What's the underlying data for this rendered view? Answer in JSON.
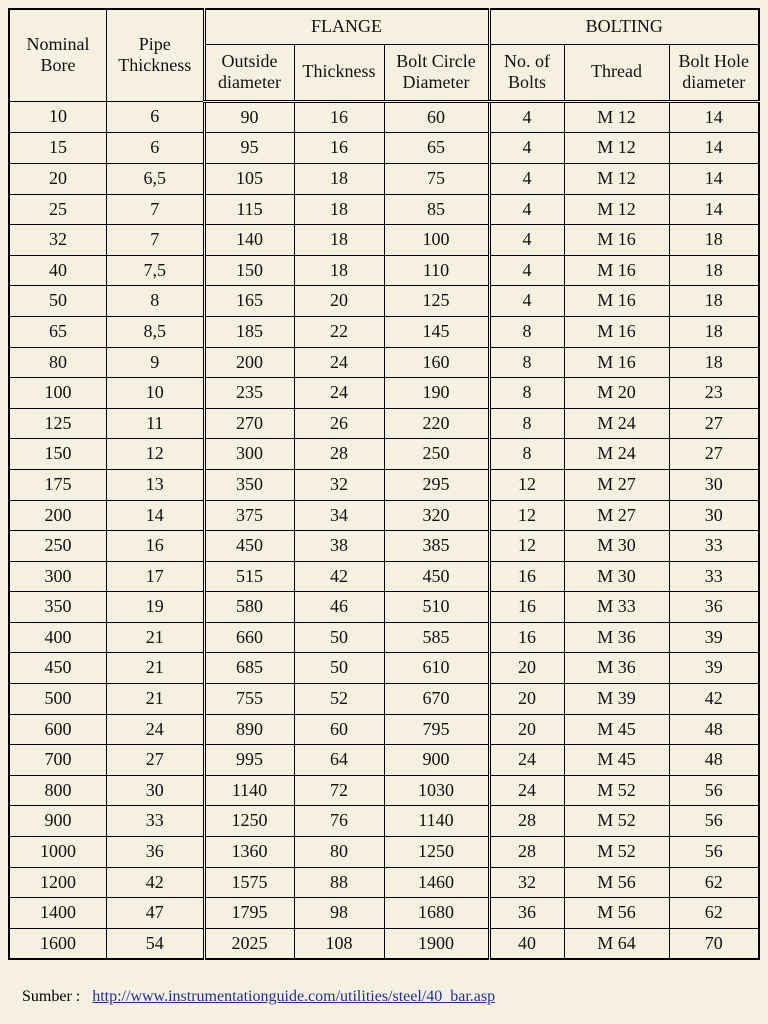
{
  "colors": {
    "background": "#f5f0e0",
    "border": "#000000",
    "text": "#111111",
    "link": "#2030a0"
  },
  "table": {
    "header_groups": [
      "Nominal\nBore",
      "Pipe\nThickness",
      "FLANGE",
      "BOLTING"
    ],
    "flange_sub": [
      "Outside\ndiameter",
      "Thickness",
      "Bolt Circle\nDiameter"
    ],
    "bolting_sub": [
      "No. of\nBolts",
      "Thread",
      "Bolt Hole\ndiameter"
    ],
    "col_widths_pct": [
      13,
      13,
      12,
      12,
      14,
      10,
      14,
      12
    ],
    "rows": [
      [
        "10",
        "6",
        "90",
        "16",
        "60",
        "4",
        "M 12",
        "14"
      ],
      [
        "15",
        "6",
        "95",
        "16",
        "65",
        "4",
        "M 12",
        "14"
      ],
      [
        "20",
        "6,5",
        "105",
        "18",
        "75",
        "4",
        "M 12",
        "14"
      ],
      [
        "25",
        "7",
        "115",
        "18",
        "85",
        "4",
        "M 12",
        "14"
      ],
      [
        "32",
        "7",
        "140",
        "18",
        "100",
        "4",
        "M 16",
        "18"
      ],
      [
        "40",
        "7,5",
        "150",
        "18",
        "110",
        "4",
        "M 16",
        "18"
      ],
      [
        "50",
        "8",
        "165",
        "20",
        "125",
        "4",
        "M 16",
        "18"
      ],
      [
        "65",
        "8,5",
        "185",
        "22",
        "145",
        "8",
        "M 16",
        "18"
      ],
      [
        "80",
        "9",
        "200",
        "24",
        "160",
        "8",
        "M 16",
        "18"
      ],
      [
        "100",
        "10",
        "235",
        "24",
        "190",
        "8",
        "M 20",
        "23"
      ],
      [
        "125",
        "11",
        "270",
        "26",
        "220",
        "8",
        "M 24",
        "27"
      ],
      [
        "150",
        "12",
        "300",
        "28",
        "250",
        "8",
        "M 24",
        "27"
      ],
      [
        "175",
        "13",
        "350",
        "32",
        "295",
        "12",
        "M 27",
        "30"
      ],
      [
        "200",
        "14",
        "375",
        "34",
        "320",
        "12",
        "M 27",
        "30"
      ],
      [
        "250",
        "16",
        "450",
        "38",
        "385",
        "12",
        "M 30",
        "33"
      ],
      [
        "300",
        "17",
        "515",
        "42",
        "450",
        "16",
        "M 30",
        "33"
      ],
      [
        "350",
        "19",
        "580",
        "46",
        "510",
        "16",
        "M 33",
        "36"
      ],
      [
        "400",
        "21",
        "660",
        "50",
        "585",
        "16",
        "M 36",
        "39"
      ],
      [
        "450",
        "21",
        "685",
        "50",
        "610",
        "20",
        "M 36",
        "39"
      ],
      [
        "500",
        "21",
        "755",
        "52",
        "670",
        "20",
        "M 39",
        "42"
      ],
      [
        "600",
        "24",
        "890",
        "60",
        "795",
        "20",
        "M 45",
        "48"
      ],
      [
        "700",
        "27",
        "995",
        "64",
        "900",
        "24",
        "M 45",
        "48"
      ],
      [
        "800",
        "30",
        "1140",
        "72",
        "1030",
        "24",
        "M 52",
        "56"
      ],
      [
        "900",
        "33",
        "1250",
        "76",
        "1140",
        "28",
        "M 52",
        "56"
      ],
      [
        "1000",
        "36",
        "1360",
        "80",
        "1250",
        "28",
        "M 52",
        "56"
      ],
      [
        "1200",
        "42",
        "1575",
        "88",
        "1460",
        "32",
        "M 56",
        "62"
      ],
      [
        "1400",
        "47",
        "1795",
        "98",
        "1680",
        "36",
        "M 56",
        "62"
      ],
      [
        "1600",
        "54",
        "2025",
        "108",
        "1900",
        "40",
        "M 64",
        "70"
      ]
    ]
  },
  "footer": {
    "label": "Sumber :",
    "link_text": "http://www.instrumentationguide.com/utilities/steel/40_bar.asp"
  }
}
